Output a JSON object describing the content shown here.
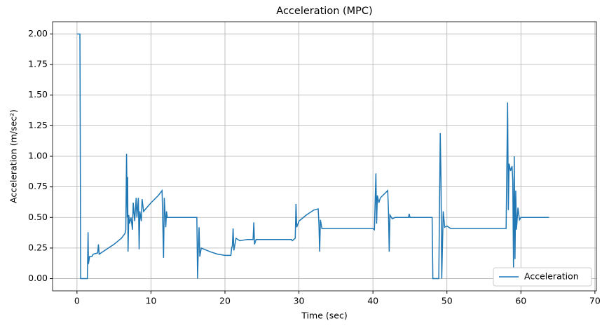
{
  "chart_data": {
    "type": "line",
    "title": "Acceleration (MPC)",
    "x_label": "Time (sec)",
    "y_label": "Acceleration (m/sec²)",
    "x": [
      0,
      0.4,
      0.5,
      1.4,
      1.5,
      1.55,
      1.7,
      2,
      2.2,
      2.8,
      2.9,
      3,
      4,
      5,
      6,
      6.5,
      6.6,
      6.7,
      6.8,
      6.85,
      6.9,
      7.0,
      7.1,
      7.3,
      7.5,
      7.6,
      7.8,
      8,
      8.1,
      8.3,
      8.4,
      8.5,
      8.7,
      8.8,
      9,
      10,
      11,
      11.5,
      11.6,
      11.7,
      11.8,
      12,
      12.1,
      12.2,
      16.2,
      16.3,
      16.4,
      16.5,
      16.6,
      16.8,
      18,
      19,
      20,
      20.8,
      20.9,
      21,
      21.1,
      21.2,
      21.5,
      22,
      23,
      23.8,
      23.9,
      24,
      24.2,
      29,
      29.1,
      29.5,
      29.6,
      29.7,
      30,
      31,
      32,
      32.6,
      32.7,
      32.8,
      32.9,
      33.1,
      40,
      40.2,
      40.4,
      40.5,
      40.6,
      40.8,
      41,
      42,
      42.1,
      42.2,
      42.3,
      42.6,
      43,
      44.8,
      44.9,
      45,
      48,
      48.1,
      48.9,
      49,
      49.1,
      49.2,
      49.3,
      49.5,
      49.7,
      50,
      50.5,
      58,
      58.2,
      58.3,
      58.4,
      58.6,
      58.8,
      58.9,
      59,
      59.1,
      59.2,
      59.3,
      59.4,
      59.6,
      59.8,
      60,
      63.8
    ],
    "series": [
      {
        "name": "Acceleration",
        "color": "#1f77b4",
        "values": [
          2.0,
          2.0,
          0.0,
          0.0,
          0.38,
          0.12,
          0.18,
          0.18,
          0.2,
          0.21,
          0.28,
          0.2,
          0.24,
          0.28,
          0.33,
          0.37,
          0.4,
          1.02,
          0.5,
          0.83,
          0.22,
          0.52,
          0.45,
          0.5,
          0.4,
          0.62,
          0.47,
          0.66,
          0.5,
          0.66,
          0.24,
          0.55,
          0.47,
          0.65,
          0.55,
          0.62,
          0.68,
          0.72,
          0.45,
          0.17,
          0.66,
          0.42,
          0.55,
          0.5,
          0.5,
          0.0,
          0.25,
          0.42,
          0.18,
          0.25,
          0.22,
          0.2,
          0.19,
          0.19,
          0.25,
          0.27,
          0.41,
          0.23,
          0.33,
          0.31,
          0.32,
          0.32,
          0.46,
          0.28,
          0.32,
          0.32,
          0.31,
          0.33,
          0.61,
          0.42,
          0.47,
          0.52,
          0.56,
          0.57,
          0.45,
          0.22,
          0.48,
          0.41,
          0.41,
          0.4,
          0.86,
          0.45,
          0.68,
          0.62,
          0.66,
          0.72,
          0.55,
          0.22,
          0.52,
          0.49,
          0.5,
          0.5,
          0.53,
          0.5,
          0.5,
          0.0,
          0.0,
          0.6,
          1.19,
          0.8,
          0.0,
          0.55,
          0.42,
          0.43,
          0.41,
          0.41,
          1.44,
          0.56,
          0.94,
          0.88,
          0.92,
          0.8,
          0.08,
          1.0,
          0.16,
          0.72,
          0.4,
          0.58,
          0.48,
          0.5,
          0.5
        ]
      }
    ],
    "xlim": [
      -3.3,
      70.2
    ],
    "ylim": [
      -0.1,
      2.1
    ],
    "xticks": [
      0,
      10,
      20,
      30,
      40,
      50,
      60,
      70
    ],
    "yticks": [
      {
        "value": 0,
        "label": "0.00"
      },
      {
        "value": 0.25,
        "label": "0.25"
      },
      {
        "value": 0.5,
        "label": "0.50"
      },
      {
        "value": 0.75,
        "label": "0.75"
      },
      {
        "value": 1,
        "label": "1.00"
      },
      {
        "value": 1.25,
        "label": "1.25"
      },
      {
        "value": 1.5,
        "label": "1.50"
      },
      {
        "value": 1.75,
        "label": "1.75"
      },
      {
        "value": 2,
        "label": "2.00"
      }
    ],
    "grid": true,
    "legend": "lower right"
  }
}
